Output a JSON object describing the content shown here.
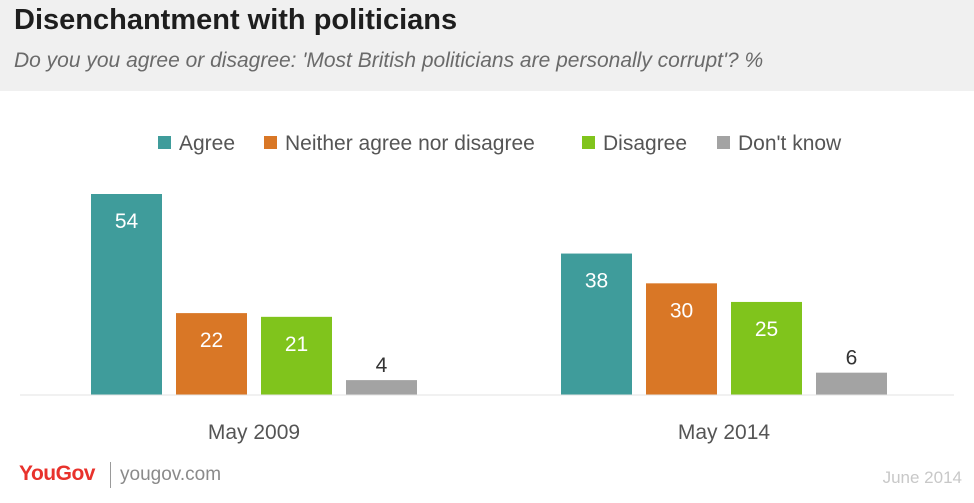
{
  "header": {
    "title": "Disenchantment with politicians",
    "subtitle": "Do you you agree or disagree: 'Most British politicians are personally corrupt'? %"
  },
  "footer": {
    "brand": "YouGov",
    "url": "yougov.com",
    "date": "June 2014"
  },
  "chart_data": {
    "type": "bar",
    "title": "Disenchantment with politicians",
    "subtitle": "Do you you agree or disagree: 'Most British politicians are personally corrupt'? %",
    "categories": [
      "May 2009",
      "May 2014"
    ],
    "series": [
      {
        "name": "Agree",
        "values": [
          54,
          38
        ],
        "color": "#3f9c9b"
      },
      {
        "name": "Neither agree nor disagree",
        "values": [
          22,
          30
        ],
        "color": "#d97726"
      },
      {
        "name": "Disagree",
        "values": [
          21,
          25
        ],
        "color": "#80c41c"
      },
      {
        "name": "Don't know",
        "values": [
          4,
          6
        ],
        "color": "#a3a3a3"
      }
    ],
    "ylim": [
      0,
      54
    ],
    "grid": false,
    "legend": "top",
    "value_label_color_inside": "#ffffff",
    "value_label_color_outside": "#333333"
  }
}
